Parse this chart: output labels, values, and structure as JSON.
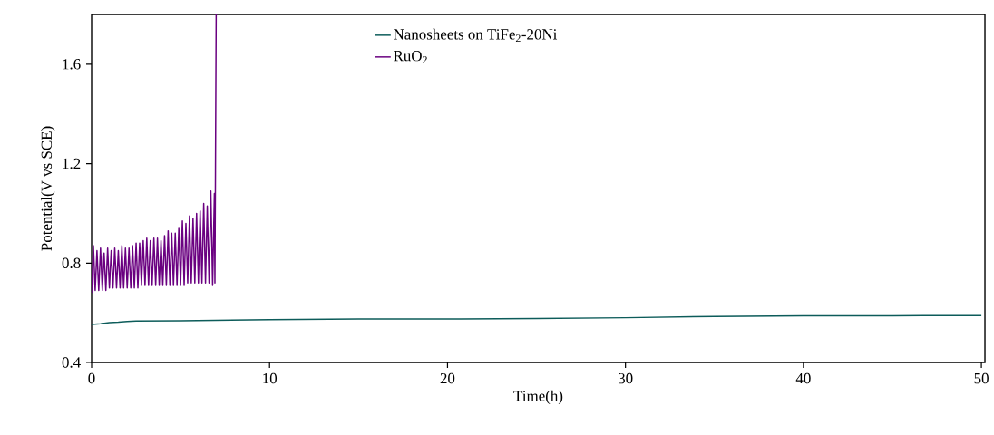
{
  "chart_data": {
    "type": "line",
    "xlabel": "Time(h)",
    "ylabel": "Potential(V vs SCE)",
    "xlim": [
      0,
      50.2
    ],
    "ylim": [
      0.4,
      1.8
    ],
    "xticks": [
      0,
      10,
      20,
      30,
      40,
      50
    ],
    "yticks": [
      {
        "value": 0.4,
        "label": "0.4"
      },
      {
        "value": 0.8,
        "label": "0.8"
      },
      {
        "value": 1.2,
        "label": "1.2"
      },
      {
        "value": 1.6,
        "label": "1.6"
      }
    ],
    "grid": false,
    "legend": "top",
    "marker": "none",
    "line_style": "solid",
    "series": [
      {
        "name": "Nanosheets on TiFe$_{2}$-20Ni",
        "color": "#0d5c5a",
        "x": [
          0,
          0.5,
          1,
          1.5,
          2,
          2.5,
          5,
          10,
          15,
          20,
          25,
          30,
          35,
          40,
          45,
          50
        ],
        "values": [
          0.553,
          0.556,
          0.56,
          0.562,
          0.565,
          0.567,
          0.568,
          0.572,
          0.575,
          0.575,
          0.577,
          0.58,
          0.585,
          0.588,
          0.588,
          0.589
        ]
      },
      {
        "name": "RuO$_{2}$",
        "color": "#6a0080",
        "x": [
          0.0,
          0.1,
          0.2,
          0.3,
          0.4,
          0.5,
          0.6,
          0.7,
          0.8,
          0.9,
          1.0,
          1.1,
          1.2,
          1.3,
          1.4,
          1.5,
          1.6,
          1.7,
          1.8,
          1.9,
          2.0,
          2.1,
          2.2,
          2.3,
          2.4,
          2.5,
          2.6,
          2.7,
          2.8,
          2.9,
          3.0,
          3.1,
          3.2,
          3.3,
          3.4,
          3.5,
          3.6,
          3.7,
          3.8,
          3.9,
          4.0,
          4.1,
          4.2,
          4.3,
          4.4,
          4.5,
          4.6,
          4.7,
          4.8,
          4.9,
          5.0,
          5.1,
          5.2,
          5.3,
          5.4,
          5.5,
          5.6,
          5.7,
          5.8,
          5.9,
          6.0,
          6.1,
          6.2,
          6.3,
          6.4,
          6.5,
          6.6,
          6.7,
          6.8,
          6.9,
          6.93,
          6.96,
          7.0
        ],
        "values": [
          0.68,
          0.87,
          0.69,
          0.85,
          0.69,
          0.86,
          0.69,
          0.84,
          0.69,
          0.86,
          0.7,
          0.85,
          0.7,
          0.86,
          0.7,
          0.85,
          0.7,
          0.87,
          0.7,
          0.86,
          0.7,
          0.86,
          0.7,
          0.87,
          0.7,
          0.88,
          0.7,
          0.88,
          0.71,
          0.89,
          0.71,
          0.9,
          0.71,
          0.89,
          0.71,
          0.9,
          0.71,
          0.9,
          0.71,
          0.89,
          0.71,
          0.91,
          0.71,
          0.93,
          0.71,
          0.92,
          0.71,
          0.92,
          0.71,
          0.94,
          0.71,
          0.97,
          0.71,
          0.96,
          0.72,
          0.99,
          0.72,
          0.98,
          0.72,
          1.0,
          0.72,
          1.01,
          0.72,
          1.04,
          0.72,
          1.03,
          0.72,
          1.09,
          0.71,
          1.08,
          0.72,
          1.17,
          1.8
        ]
      }
    ]
  }
}
